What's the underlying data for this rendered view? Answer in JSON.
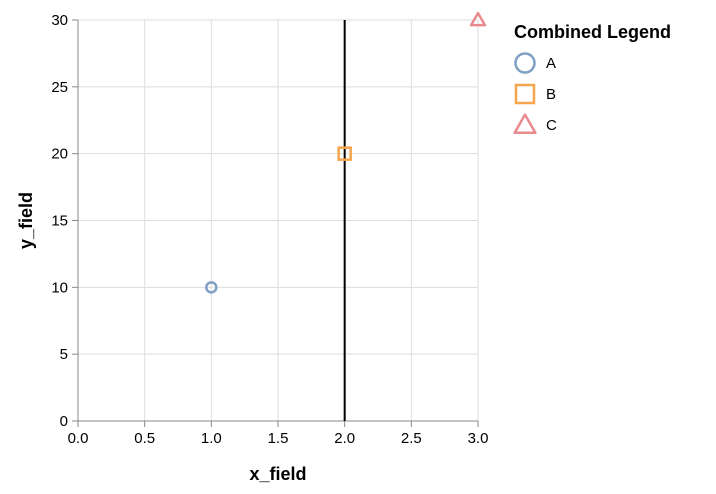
{
  "chart_data": {
    "type": "scatter",
    "xlabel": "x_field",
    "ylabel": "y_field",
    "xlim": [
      0,
      3
    ],
    "ylim": [
      0,
      30
    ],
    "x_ticks": [
      "0.0",
      "0.5",
      "1.0",
      "1.5",
      "2.0",
      "2.5",
      "3.0"
    ],
    "y_ticks": [
      "0",
      "5",
      "10",
      "15",
      "20",
      "25",
      "30"
    ],
    "grid": true,
    "points": [
      {
        "x": 1,
        "y": 10,
        "category": "A"
      },
      {
        "x": 2,
        "y": 20,
        "category": "B"
      },
      {
        "x": 3,
        "y": 30,
        "category": "C"
      }
    ],
    "rule": {
      "x": 2,
      "color": "#000000"
    },
    "legend": {
      "title": "Combined Legend",
      "placement": "top-right",
      "items": [
        {
          "label": "A",
          "shape": "circle",
          "color": "#7f9fc3"
        },
        {
          "label": "B",
          "shape": "square",
          "color": "#f5a54b"
        },
        {
          "label": "C",
          "shape": "triangle",
          "color": "#e88a8e"
        }
      ]
    }
  }
}
